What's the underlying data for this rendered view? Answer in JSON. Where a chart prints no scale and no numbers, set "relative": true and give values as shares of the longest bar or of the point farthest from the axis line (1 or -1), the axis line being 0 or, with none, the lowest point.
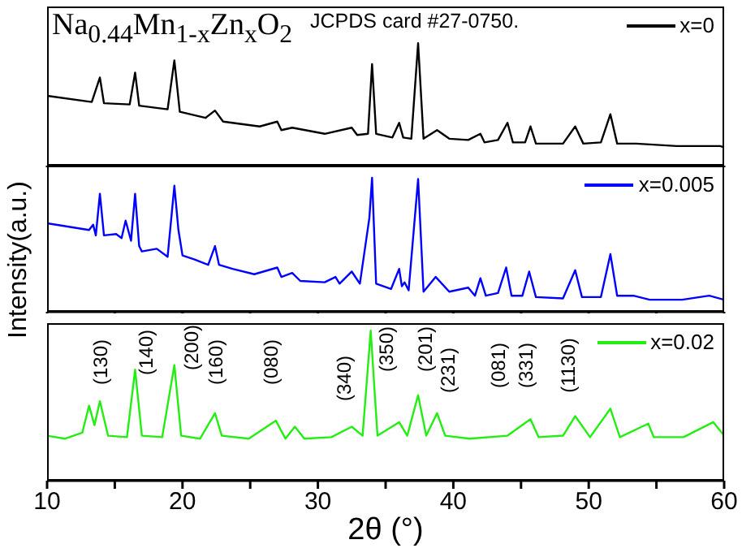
{
  "chart_data": [
    {
      "type": "line",
      "title": "Na$_{0.44}$Mn$_{1-x}$Zn$_{x}$O$_{2}$",
      "annotations": [
        "JCPDS card #27-0750."
      ],
      "relative": true,
      "xlim": [
        10,
        60
      ],
      "xticks": [
        10,
        {
          "value": 15,
          "label": null
        },
        20,
        {
          "value": 25,
          "label": null
        },
        30,
        {
          "value": 35,
          "label": null
        },
        40,
        {
          "value": 45,
          "label": null
        },
        50,
        {
          "value": 55,
          "label": null
        },
        60
      ],
      "tick_labels": false,
      "grid": false,
      "legend": "top right",
      "line_style": "solid",
      "x": [
        10.0,
        13.3,
        13.9,
        14.2,
        16.1,
        16.5,
        16.8,
        18.9,
        19.4,
        19.8,
        21.7,
        22.4,
        23.0,
        25.7,
        27.0,
        27.3,
        28.1,
        30.5,
        32.5,
        32.9,
        33.7,
        34.0,
        34.3,
        35.5,
        36.0,
        36.3,
        36.9,
        37.4,
        37.8,
        38.8,
        39.7,
        41.1,
        42.0,
        42.3,
        43.3,
        44.0,
        44.4,
        45.3,
        45.7,
        46.1,
        48.1,
        49.0,
        49.6,
        50.9,
        51.6,
        52.1,
        53.5,
        56.5,
        58.5,
        59.7,
        60
      ],
      "series": [
        {
          "name": "x=0",
          "color": "#000000",
          "values": [
            0.57,
            0.52,
            0.72,
            0.51,
            0.5,
            0.76,
            0.49,
            0.46,
            0.86,
            0.44,
            0.39,
            0.45,
            0.36,
            0.32,
            0.36,
            0.29,
            0.31,
            0.26,
            0.31,
            0.25,
            0.26,
            0.83,
            0.26,
            0.23,
            0.35,
            0.23,
            0.22,
            1,
            0.22,
            0.29,
            0.22,
            0.21,
            0.26,
            0.19,
            0.21,
            0.35,
            0.19,
            0.19,
            0.32,
            0.18,
            0.18,
            0.32,
            0.18,
            0.19,
            0.42,
            0.18,
            0.18,
            0.16,
            0.16,
            0.16,
            0.15
          ]
        }
      ]
    },
    {
      "type": "line",
      "ylabel": "Intensity(a.u.)",
      "relative": true,
      "xlim": [
        10,
        60
      ],
      "xticks": [
        10,
        {
          "value": 15,
          "label": null
        },
        20,
        {
          "value": 25,
          "label": null
        },
        30,
        {
          "value": 35,
          "label": null
        },
        40,
        {
          "value": 45,
          "label": null
        },
        50,
        {
          "value": 55,
          "label": null
        },
        60
      ],
      "tick_labels": false,
      "grid": false,
      "legend": "top right",
      "line_style": "solid",
      "x": [
        10.0,
        13.1,
        13.4,
        13.6,
        13.9,
        14.2,
        15.1,
        15.5,
        15.8,
        16.2,
        16.5,
        16.8,
        17.0,
        18.1,
        18.9,
        19.4,
        19.7,
        20.0,
        20.9,
        21.9,
        22.4,
        22.7,
        23.7,
        25.3,
        27.0,
        27.3,
        28.1,
        28.7,
        30.5,
        31.3,
        31.6,
        32.5,
        33.1,
        33.8,
        34.0,
        34.3,
        35.4,
        36.0,
        36.2,
        36.4,
        36.7,
        37.4,
        37.8,
        38.7,
        39.7,
        41.1,
        41.6,
        42.0,
        42.4,
        43.3,
        43.9,
        44.3,
        45.1,
        45.6,
        46.1,
        48.1,
        49.0,
        49.5,
        50.9,
        51.6,
        52.1,
        53.3,
        54.5,
        56.9,
        58.9,
        60
      ],
      "series": [
        {
          "name": "x=0.005",
          "color": "#0000ff",
          "values": [
            0.66,
            0.61,
            0.65,
            0.57,
            0.88,
            0.57,
            0.58,
            0.55,
            0.68,
            0.53,
            0.88,
            0.49,
            0.45,
            0.47,
            0.41,
            0.94,
            0.61,
            0.42,
            0.39,
            0.35,
            0.49,
            0.35,
            0.32,
            0.28,
            0.33,
            0.26,
            0.29,
            0.23,
            0.22,
            0.26,
            0.21,
            0.3,
            0.21,
            0.7,
            1,
            0.21,
            0.17,
            0.32,
            0.19,
            0.22,
            0.16,
            0.99,
            0.15,
            0.26,
            0.15,
            0.18,
            0.12,
            0.25,
            0.12,
            0.14,
            0.33,
            0.12,
            0.12,
            0.3,
            0.11,
            0.1,
            0.31,
            0.11,
            0.11,
            0.43,
            0.12,
            0.12,
            0.09,
            0.09,
            0.12,
            0.09
          ]
        }
      ]
    },
    {
      "type": "line",
      "xlabel": "2θ (°)",
      "relative": true,
      "xlim": [
        10,
        60
      ],
      "xticks": [
        10,
        {
          "value": 15,
          "label": null
        },
        20,
        {
          "value": 25,
          "label": null
        },
        30,
        {
          "value": 35,
          "label": null
        },
        40,
        {
          "value": 45,
          "label": null
        },
        50,
        {
          "value": 55,
          "label": null
        },
        60
      ],
      "tick_labels": "x",
      "grid": false,
      "legend": "top right",
      "line_style": "solid",
      "annotations": [
        "(130)",
        "(140)",
        "(200)",
        "(160)",
        "(080)",
        "(340)",
        "(350)",
        "(201)",
        "(231)",
        "(081)",
        "(331)",
        "(1130)"
      ],
      "x": [
        10.0,
        11.3,
        12.6,
        13.1,
        13.5,
        13.9,
        14.5,
        15.9,
        16.5,
        17.0,
        18.5,
        19.4,
        19.9,
        21.3,
        22.4,
        22.9,
        24.9,
        26.9,
        27.6,
        28.3,
        29.0,
        31.0,
        32.5,
        33.3,
        33.9,
        34.4,
        36.0,
        36.6,
        37.4,
        38.0,
        38.8,
        39.4,
        41.2,
        44.0,
        45.7,
        46.3,
        48.1,
        49.0,
        50.1,
        51.6,
        52.3,
        54.4,
        54.8,
        57.0,
        59.2,
        60
      ],
      "series": [
        {
          "name": "x=0.02",
          "color": "#22ee11",
          "values": [
            0.3,
            0.28,
            0.32,
            0.5,
            0.37,
            0.53,
            0.3,
            0.29,
            0.74,
            0.3,
            0.29,
            0.77,
            0.3,
            0.28,
            0.45,
            0.3,
            0.28,
            0.4,
            0.28,
            0.36,
            0.28,
            0.29,
            0.36,
            0.3,
            1,
            0.3,
            0.39,
            0.3,
            0.57,
            0.3,
            0.45,
            0.3,
            0.28,
            0.3,
            0.41,
            0.29,
            0.3,
            0.43,
            0.29,
            0.48,
            0.29,
            0.38,
            0.29,
            0.29,
            0.39,
            0.3
          ]
        }
      ]
    }
  ]
}
